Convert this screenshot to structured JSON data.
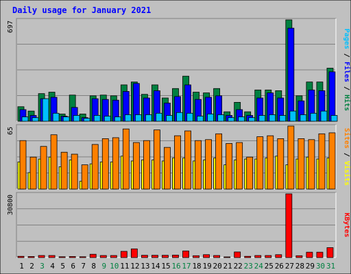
{
  "chart_data": {
    "title": "Daily usage for January 2021",
    "days": [
      "1",
      "2",
      "3",
      "4",
      "5",
      "6",
      "7",
      "8",
      "9",
      "10",
      "11",
      "12",
      "13",
      "14",
      "15",
      "16",
      "17",
      "18",
      "19",
      "20",
      "21",
      "22",
      "23",
      "24",
      "25",
      "26",
      "27",
      "28",
      "29",
      "30",
      "31"
    ],
    "weekend_days": [
      "3",
      "9",
      "10",
      "16",
      "17",
      "23",
      "24",
      "30",
      "31"
    ],
    "panels": [
      {
        "id": "top",
        "type": "bar",
        "max_label": "697",
        "ylim": [
          0,
          697
        ],
        "axis_label": [
          "Pages",
          "Files",
          "Hits"
        ],
        "axis_label_colors": [
          "#00c0ff",
          "#0000ff",
          "#008040"
        ],
        "series": [
          {
            "name": "Hits",
            "color": "#008040",
            "values": [
              100,
              70,
              190,
              200,
              50,
              180,
              50,
              175,
              180,
              175,
              250,
              270,
              185,
              250,
              160,
              225,
              310,
              200,
              195,
              225,
              65,
              130,
              65,
              215,
              215,
              210,
              697,
              175,
              270,
              270,
              365
            ]
          },
          {
            "name": "Files",
            "color": "#0000ff",
            "values": [
              80,
              40,
              155,
              165,
              35,
              95,
              25,
              155,
              150,
              145,
              205,
              260,
              160,
              210,
              125,
              170,
              250,
              150,
              165,
              175,
              40,
              80,
              40,
              160,
              195,
              160,
              640,
              140,
              215,
              210,
              340
            ]
          },
          {
            "name": "Pages",
            "color": "#00c0ff",
            "values": [
              30,
              25,
              155,
              55,
              30,
              40,
              20,
              40,
              35,
              30,
              45,
              45,
              45,
              55,
              40,
              60,
              55,
              35,
              50,
              45,
              25,
              30,
              25,
              40,
              45,
              40,
              70,
              45,
              55,
              70,
              40
            ]
          }
        ]
      },
      {
        "id": "middle",
        "type": "bar",
        "max_label": "65",
        "ylim": [
          0,
          65
        ],
        "axis_label": [
          "Sites",
          "Visits"
        ],
        "axis_label_colors": [
          "#ff8000",
          "#ffff00"
        ],
        "series": [
          {
            "name": "Visits",
            "color": "#ffff00",
            "values": [
              28,
              17,
              31,
              33,
              23,
              30,
              8,
              26,
              28,
              28,
              34,
              29,
              30,
              30,
              29,
              32,
              32,
              29,
              30,
              32,
              25,
              30,
              31,
              31,
              32,
              34,
              25,
              31,
              33,
              31,
              32
            ]
          },
          {
            "name": "Sites",
            "color": "#ff8000",
            "values": [
              50,
              33,
              44,
              56,
              38,
              36,
              25,
              46,
              52,
              53,
              62,
              48,
              50,
              61,
              43,
              55,
              60,
              50,
              51,
              57,
              47,
              48,
              33,
              54,
              55,
              52,
              65,
              52,
              51,
              57,
              58
            ]
          }
        ]
      },
      {
        "id": "bottom",
        "type": "bar",
        "max_label": "30800",
        "ylim": [
          0,
          30800
        ],
        "axis_label": [
          "KBytes"
        ],
        "axis_label_colors": [
          "#ff0000"
        ],
        "series": [
          {
            "name": "KBytes",
            "color": "#ff0000",
            "values": [
              600,
              500,
              1000,
              1000,
              400,
              500,
              400,
              1600,
              1000,
              1000,
              3000,
              4200,
              1100,
              1100,
              1100,
              1200,
              3200,
              900,
              1400,
              1000,
              300,
              2700,
              600,
              1000,
              1000,
              1400,
              30800,
              900,
              2600,
              2600,
              4800
            ]
          }
        ]
      }
    ]
  },
  "colors": {
    "background": "#c0c0c0",
    "title_text": "#0000ff",
    "grid": "#808080",
    "weekday_label": "#000000",
    "weekend_label": "#008040"
  }
}
